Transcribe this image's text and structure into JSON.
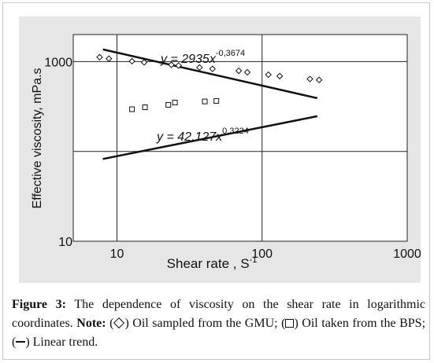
{
  "chart_data": {
    "type": "scatter",
    "xscale": "log",
    "yscale": "log",
    "xlim": [
      5,
      1000
    ],
    "ylim": [
      10,
      2000
    ],
    "x_ticks": [
      "10",
      "100",
      "1000"
    ],
    "y_ticks": [
      "10",
      "1000"
    ],
    "xlabel": "Shear rate , S",
    "xlabel_sup": "-1",
    "ylabel": "Effective viscosity, mPa.s",
    "grid": true,
    "series": [
      {
        "marker": "diamond",
        "points": [
          [
            7.6,
            1120
          ],
          [
            8.8,
            1080
          ],
          [
            12.7,
            1010
          ],
          [
            15.4,
            980
          ],
          [
            23.7,
            920
          ],
          [
            26.6,
            905
          ],
          [
            37.1,
            860
          ],
          [
            45.5,
            830
          ],
          [
            69.1,
            790
          ],
          [
            79.1,
            760
          ],
          [
            110.5,
            715
          ],
          [
            132.3,
            690
          ],
          [
            213.6,
            640
          ],
          [
            247.0,
            625
          ]
        ]
      },
      {
        "marker": "square",
        "points": [
          [
            12.7,
            295
          ],
          [
            15.6,
            310
          ],
          [
            22.6,
            330
          ],
          [
            25.1,
            350
          ],
          [
            40.3,
            360
          ],
          [
            48.4,
            365
          ]
        ]
      }
    ],
    "trendlines": [
      {
        "series": 0,
        "x_range": [
          8.0,
          240.0
        ],
        "coef": 2935,
        "exp": -0.3674
      },
      {
        "series": 1,
        "x_range": [
          8.0,
          240.0
        ],
        "coef": 42.127,
        "exp": 0.3224
      }
    ],
    "annotations": [
      {
        "label_main": "y = 2935x",
        "label_exp": "-0,3674"
      },
      {
        "label_main": "y = 42,127x",
        "label_exp": "0,3224"
      }
    ]
  },
  "caption": {
    "figure_label": "Figure 3:",
    "text1": " The dependence of viscosity on the shear rate in logarithmic coordinates. ",
    "note_label": "Note:",
    "text2": " (",
    "text3": ") Oil sampled from the GMU; (",
    "text4": ") Oil taken from the BPS; (",
    "text5": ") Linear trend."
  }
}
